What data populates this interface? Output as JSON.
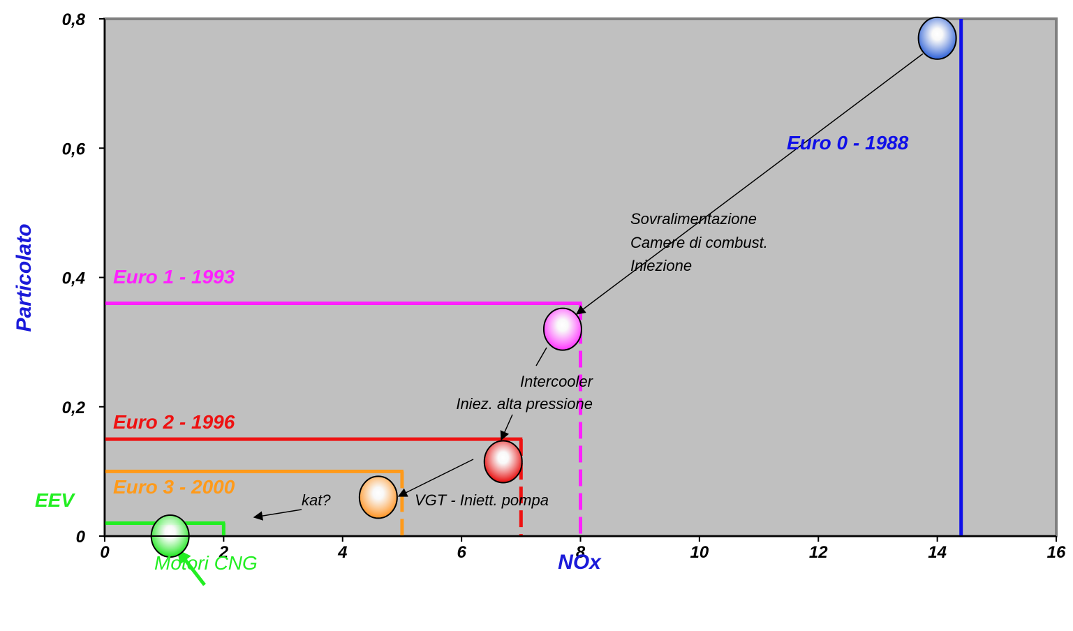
{
  "chart_data": {
    "type": "scatter",
    "xlabel": "NOx",
    "ylabel": "Particolato",
    "xlim": [
      0,
      16
    ],
    "ylim": [
      0,
      0.8
    ],
    "x_ticks": [
      "0",
      "2",
      "4",
      "6",
      "8",
      "10",
      "12",
      "14",
      "16"
    ],
    "y_ticks": [
      "0",
      "0,2",
      "0,4",
      "0,6",
      "0,8"
    ],
    "grid": false,
    "background": "#c0c0c0",
    "limits": [
      {
        "name": "Euro 0 - 1988",
        "nox": 14.4,
        "pm": null,
        "color": "#1010e8"
      },
      {
        "name": "Euro 1 - 1993",
        "nox": 8,
        "pm": 0.36,
        "color": "#ff20ff"
      },
      {
        "name": "Euro 2 - 1996",
        "nox": 7,
        "pm": 0.15,
        "color": "#ee1111"
      },
      {
        "name": "Euro 3 - 2000",
        "nox": 5,
        "pm": 0.1,
        "color": "#ff9a1a"
      },
      {
        "name": "EEV",
        "nox": 2,
        "pm": 0.02,
        "color": "#22ee22"
      }
    ],
    "points": [
      {
        "x": 14.0,
        "y": 0.77,
        "color": "#3a6ad8"
      },
      {
        "x": 7.7,
        "y": 0.32,
        "color": "#ff40ff"
      },
      {
        "x": 6.7,
        "y": 0.115,
        "color": "#e81818"
      },
      {
        "x": 4.6,
        "y": 0.06,
        "color": "#ff9a30"
      },
      {
        "x": 1.1,
        "y": 0.0,
        "color": "#30e830"
      }
    ],
    "annotations": [
      {
        "lines": [
          "Sovralimentazione",
          "Camere di combust.",
          "Iniezione"
        ]
      },
      {
        "lines": [
          "Intercooler",
          "Iniez. alta pressione"
        ]
      },
      {
        "lines": [
          "VGT - Iniett. pompa"
        ]
      },
      {
        "lines": [
          "kat?"
        ]
      },
      {
        "lines": [
          "Motori CNG"
        ],
        "color": "#22ee22"
      }
    ]
  }
}
